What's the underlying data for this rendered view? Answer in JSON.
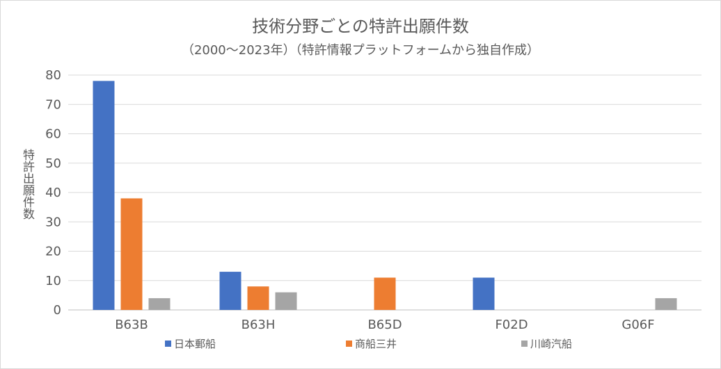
{
  "chart_data": {
    "type": "bar",
    "title": "技術分野ごとの特許出願件数",
    "subtitle": "（2000〜2023年）（特許情報プラットフォームから独自作成）",
    "xlabel": "",
    "ylabel": "特許出願件数",
    "ylim": [
      0,
      80
    ],
    "yticks": [
      0,
      10,
      20,
      30,
      40,
      50,
      60,
      70,
      80
    ],
    "categories": [
      "B63B",
      "B63H",
      "B65D",
      "F02D",
      "G06F"
    ],
    "series": [
      {
        "name": "日本郵船",
        "color": "#4472c4",
        "values": [
          78,
          13,
          0,
          11,
          0
        ]
      },
      {
        "name": "商船三井",
        "color": "#ed7d31",
        "values": [
          38,
          8,
          11,
          0,
          0
        ]
      },
      {
        "name": "川崎汽船",
        "color": "#a5a5a5",
        "values": [
          4,
          6,
          0,
          0,
          4
        ]
      }
    ],
    "grid": true,
    "legend_position": "bottom"
  }
}
